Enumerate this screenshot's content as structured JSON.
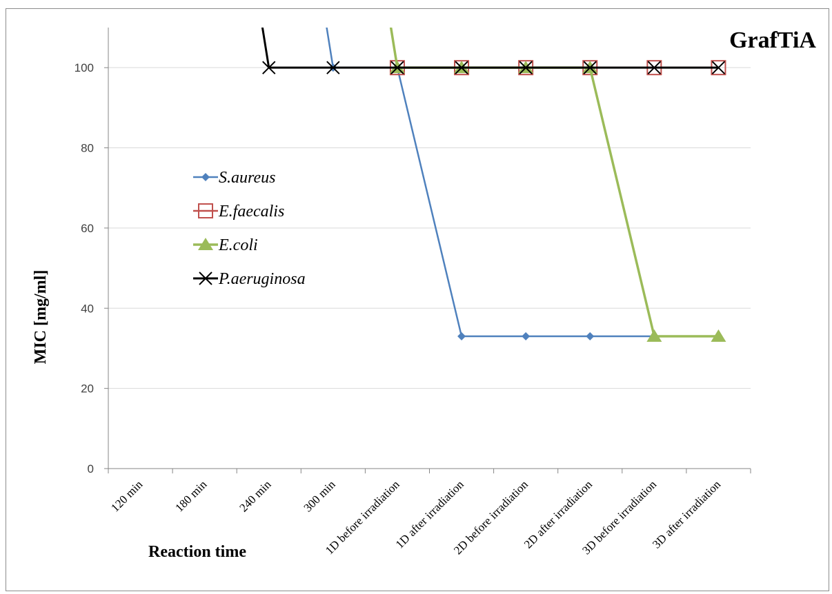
{
  "chart_data": {
    "type": "line",
    "title": "GrafTiA",
    "xlabel": "Reaction time",
    "ylabel": "MIC [mg/ml]",
    "categories": [
      "120 min",
      "180 min",
      "240 min",
      "300 min",
      "1D before irradiation",
      "1D after irradiation",
      "2D before irradiation",
      "2D after irradiation",
      "3D before irradiation",
      "3D after irradiation"
    ],
    "ylim": [
      0,
      110
    ],
    "yticks": [
      0,
      20,
      40,
      60,
      80,
      100
    ],
    "grid": true,
    "legend_position": "center-left",
    "series": [
      {
        "name": "S.aureus",
        "color": "#4f81bd",
        "marker": "diamond",
        "values": [
          null,
          null,
          200,
          100,
          100,
          33,
          33,
          33,
          33,
          null
        ]
      },
      {
        "name": "E.faecalis",
        "color": "#c0504d",
        "marker": "square-open",
        "values": [
          null,
          null,
          null,
          null,
          100,
          100,
          100,
          100,
          100,
          100
        ]
      },
      {
        "name": "E.coli",
        "color": "#9bbb59",
        "marker": "triangle",
        "values": [
          null,
          null,
          null,
          200,
          100,
          100,
          100,
          100,
          33,
          33
        ]
      },
      {
        "name": "P.aeruginosa",
        "color": "#000000",
        "marker": "x",
        "values": [
          null,
          200,
          100,
          100,
          100,
          100,
          100,
          100,
          100,
          100
        ]
      }
    ]
  }
}
